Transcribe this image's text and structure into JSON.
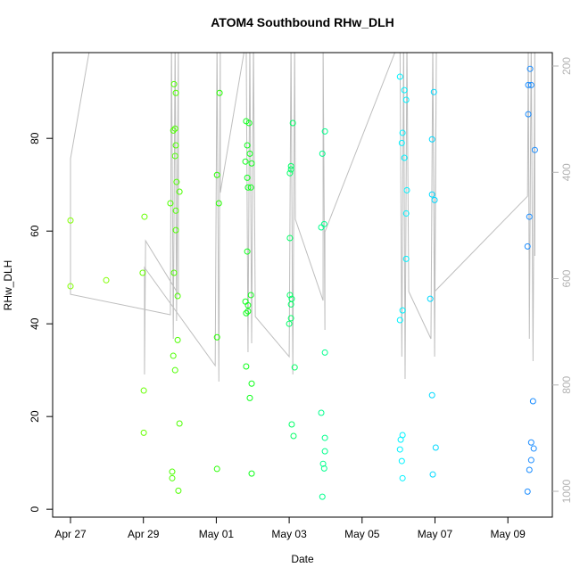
{
  "chart_data": {
    "type": "scatter",
    "title": "ATOM4 Southbound RHw_DLH",
    "xlabel": "Date",
    "ylabel": "RHw_DLH",
    "xlim": [
      -0.49,
      13.22
    ],
    "ylim": [
      -1.7,
      98.5
    ],
    "y2lim": [
      1048.6,
      174.8
    ],
    "xticks": [
      {
        "value": 0,
        "label": "Apr 27"
      },
      {
        "value": 2,
        "label": "Apr 29"
      },
      {
        "value": 4,
        "label": "May 01"
      },
      {
        "value": 6,
        "label": "May 03"
      },
      {
        "value": 8,
        "label": "May 05"
      },
      {
        "value": 10,
        "label": "May 07"
      },
      {
        "value": 12,
        "label": "May 09"
      }
    ],
    "yticks": [
      0,
      20,
      40,
      60,
      80
    ],
    "y2ticks": [
      200,
      400,
      600,
      800,
      1000
    ],
    "series": [
      {
        "color": "#bebebe",
        "type": "line",
        "axis": "y2",
        "x": [
          0.59,
          0,
          0,
          2.74,
          2.77,
          2.82,
          2.87,
          2.91,
          2.96,
          2.96,
          2.06,
          2.03,
          2.03,
          3.97,
          4.02,
          4.07,
          4.11,
          4.11,
          4.82,
          4.87,
          4.92,
          4.97,
          5.02,
          5.07,
          6.0,
          6.05,
          6.1,
          6.15,
          6.17,
          6.93,
          6.93,
          6.98,
          6.98,
          9.04,
          9.09,
          9.14,
          9.18,
          9.23,
          9.28,
          9.89,
          9.94,
          9.99,
          10.04,
          9.99,
          12.54,
          12.56,
          12.59,
          12.64,
          12.69,
          12.74,
          12.74
        ],
        "values": [
          143.0,
          374.4,
          629.4,
          667.9,
          150,
          713.2,
          150,
          679.7,
          150,
          629.4,
          528.7,
          780.3,
          579.0,
          763.5,
          150,
          793.7,
          150,
          438.2,
          150,
          738.4,
          150,
          721.6,
          150,
          671.3,
          746.8,
          150,
          780.3,
          150,
          488.5,
          641.1,
          150,
          696.4,
          512.0,
          150,
          746.8,
          150,
          788.7,
          150,
          624.3,
          713.2,
          150,
          746.8,
          150,
          624.3,
          444.9,
          150,
          713.2,
          150,
          755.1,
          150,
          557.2
        ]
      },
      {
        "color": "#80ff00",
        "x": [
          0,
          0,
          0.98
        ],
        "values": [
          62.3,
          48.1,
          49.4
        ]
      },
      {
        "color": "#66ff00",
        "x": [
          2.03,
          1.98,
          2.01,
          2.01
        ],
        "values": [
          63.1,
          51.0,
          25.6,
          16.5
        ]
      },
      {
        "color": "#4dff00",
        "x": [
          2.84,
          2.89,
          2.82,
          2.87,
          2.89,
          2.87,
          2.91,
          2.99,
          2.74,
          2.89,
          2.89,
          2.84,
          2.94,
          2.94,
          2.82,
          2.87,
          2.99,
          2.79,
          2.79,
          2.96
        ],
        "values": [
          91.7,
          89.8,
          81.7,
          82.1,
          78.5,
          76.2,
          70.6,
          68.5,
          66.0,
          64.4,
          60.2,
          51.0,
          46.0,
          36.5,
          33.1,
          30.0,
          18.5,
          8.1,
          6.7,
          4.0
        ]
      },
      {
        "color": "#26ff00",
        "x": [
          4.09,
          4.02,
          4.07,
          4.02,
          4.02
        ],
        "values": [
          89.8,
          72.1,
          66.0,
          37.1,
          8.7
        ]
      },
      {
        "color": "#0dff1a",
        "x": [
          4.82,
          4.9,
          4.85,
          4.92,
          4.8,
          4.97,
          4.85,
          4.87,
          4.95,
          4.85,
          4.8,
          4.87,
          4.87,
          4.82,
          4.95,
          4.82,
          4.97,
          4.92,
          4.97
        ],
        "values": [
          83.7,
          83.3,
          78.5,
          76.7,
          75.0,
          74.6,
          71.5,
          69.4,
          69.4,
          55.6,
          44.8,
          44.0,
          42.7,
          42.3,
          46.2,
          30.8,
          27.1,
          24.0,
          7.7
        ]
      },
      {
        "color": "#00ff66",
        "x": [
          6.1,
          6.05,
          6.05,
          6.02,
          6.02,
          6.02,
          6.07,
          6.05,
          6.05,
          6.0,
          6.15,
          6.07,
          6.12
        ],
        "values": [
          83.3,
          74.0,
          73.3,
          72.5,
          58.5,
          46.2,
          45.4,
          44.2,
          41.2,
          40.0,
          30.6,
          18.3,
          15.8
        ]
      },
      {
        "color": "#00ff8c",
        "x": [
          6.98,
          6.91,
          6.96,
          6.88,
          6.98,
          6.88,
          6.98,
          6.98,
          6.93,
          6.96,
          6.91
        ],
        "values": [
          81.5,
          76.7,
          61.5,
          60.8,
          33.8,
          20.8,
          15.4,
          12.5,
          9.8,
          8.8,
          2.7
        ]
      },
      {
        "color": "#00f2ff",
        "x": [
          9.04,
          9.16,
          9.21,
          9.11,
          9.09,
          9.16,
          9.23,
          9.21,
          9.21,
          9.11,
          9.04,
          9.11,
          9.06,
          9.04,
          9.09,
          9.11
        ],
        "values": [
          93.3,
          90.4,
          88.3,
          81.2,
          79.0,
          75.8,
          68.8,
          63.8,
          54.0,
          42.9,
          40.8,
          16.0,
          15.0,
          12.9,
          10.4,
          6.7
        ]
      },
      {
        "color": "#00d9ff",
        "x": [
          9.97,
          9.92,
          9.92,
          9.99,
          9.87,
          9.92,
          10.02,
          9.94
        ],
        "values": [
          90.0,
          79.8,
          67.9,
          66.7,
          45.4,
          24.6,
          13.3,
          7.5
        ]
      },
      {
        "color": "#1a8cff",
        "x": [
          12.61,
          12.56,
          12.64,
          12.56,
          12.74,
          12.59,
          12.54,
          12.69,
          12.64,
          12.71,
          12.64,
          12.59,
          12.54
        ],
        "values": [
          95.0,
          91.5,
          91.5,
          85.2,
          77.5,
          63.1,
          56.7,
          23.3,
          14.4,
          13.1,
          10.6,
          8.5,
          3.8
        ]
      }
    ]
  }
}
